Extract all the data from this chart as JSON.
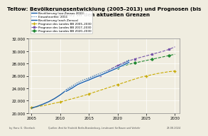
{
  "title": "Teltow: Bevölkerungsentwicklung (2005–2013) und Prognosen (bis\n2030) in den aktuellen Grenzen",
  "footnote_left": "by Hans G. Oberlack",
  "footnote_right": "23.08.2024",
  "footnote_center": "Quellen: Amt für Statistik Berlin-Brandenburg, Landesamt für Bauen und Verkehr",
  "ylim": [
    20000,
    32000
  ],
  "xlim": [
    2004.5,
    2030.8
  ],
  "yticks": [
    20000,
    22000,
    24000,
    26000,
    28000,
    30000,
    32000
  ],
  "xticks": [
    2005,
    2010,
    2015,
    2020,
    2025,
    2030
  ],
  "pop_before_census_x": [
    2005,
    2006,
    2007,
    2008,
    2009,
    2010,
    2011,
    2012,
    2013,
    2014,
    2015,
    2016,
    2017,
    2018,
    2019,
    2020,
    2021,
    2022
  ],
  "pop_before_census_y": [
    20800,
    21100,
    21450,
    21850,
    22350,
    22950,
    23650,
    24150,
    24700,
    25100,
    25500,
    25900,
    26200,
    26600,
    27000,
    27400,
    27900,
    28400
  ],
  "einwohnerfikt_x": [
    2011,
    2012,
    2013,
    2014,
    2015,
    2016,
    2017,
    2018,
    2019,
    2020,
    2021,
    2022
  ],
  "einwohnerfikt_y": [
    23800,
    24350,
    24900,
    25350,
    25700,
    26100,
    26450,
    26800,
    27200,
    27600,
    28100,
    28600
  ],
  "pop_after_census_x": [
    2011,
    2012,
    2013,
    2014,
    2015,
    2016,
    2017,
    2018,
    2019,
    2020,
    2021,
    2022
  ],
  "pop_after_census_y": [
    23500,
    24000,
    24600,
    25000,
    25350,
    25750,
    26100,
    26500,
    26900,
    27300,
    27750,
    28200
  ],
  "proj_2005_x": [
    2005,
    2006,
    2007,
    2008,
    2009,
    2010,
    2011,
    2012,
    2013,
    2014,
    2015,
    2016,
    2017,
    2018,
    2019,
    2020,
    2021,
    2022,
    2023,
    2024,
    2025,
    2026,
    2027,
    2028,
    2029,
    2030
  ],
  "proj_2005_y": [
    20900,
    21050,
    21200,
    21400,
    21600,
    21800,
    22050,
    22300,
    22550,
    22800,
    23100,
    23400,
    23700,
    24000,
    24300,
    24600,
    24900,
    25200,
    25500,
    25800,
    26000,
    26200,
    26400,
    26550,
    26700,
    26800
  ],
  "proj_2017_x": [
    2017,
    2018,
    2019,
    2020,
    2021,
    2022,
    2023,
    2024,
    2025,
    2026,
    2027,
    2028,
    2029,
    2030
  ],
  "proj_2017_y": [
    26100,
    26650,
    27200,
    27700,
    28100,
    28450,
    28750,
    29000,
    29250,
    29500,
    29750,
    30000,
    30300,
    30700
  ],
  "proj_2020_x": [
    2020,
    2021,
    2022,
    2023,
    2024,
    2025,
    2026,
    2027,
    2028,
    2029,
    2030
  ],
  "proj_2020_y": [
    27300,
    27600,
    27900,
    28100,
    28300,
    28500,
    28700,
    28900,
    29100,
    29300,
    29500
  ],
  "legend_entries": [
    "Bevölkerung (vor Zensus 2011)",
    "Einwohnerfikt. 2011",
    "Bevölkerung (nach Zensus)",
    "Prognose des Landes BB 2005–2030",
    "Prognose des Landes BB 2017–2030",
    "Prognose des Landes BB 2020–2030"
  ],
  "bg_color": "#f0ede0",
  "plot_bg_color": "#f0ede0",
  "blue_color": "#1a5fa8",
  "yellow_color": "#c8aa00",
  "purple_color": "#7755aa",
  "green_color": "#228833"
}
